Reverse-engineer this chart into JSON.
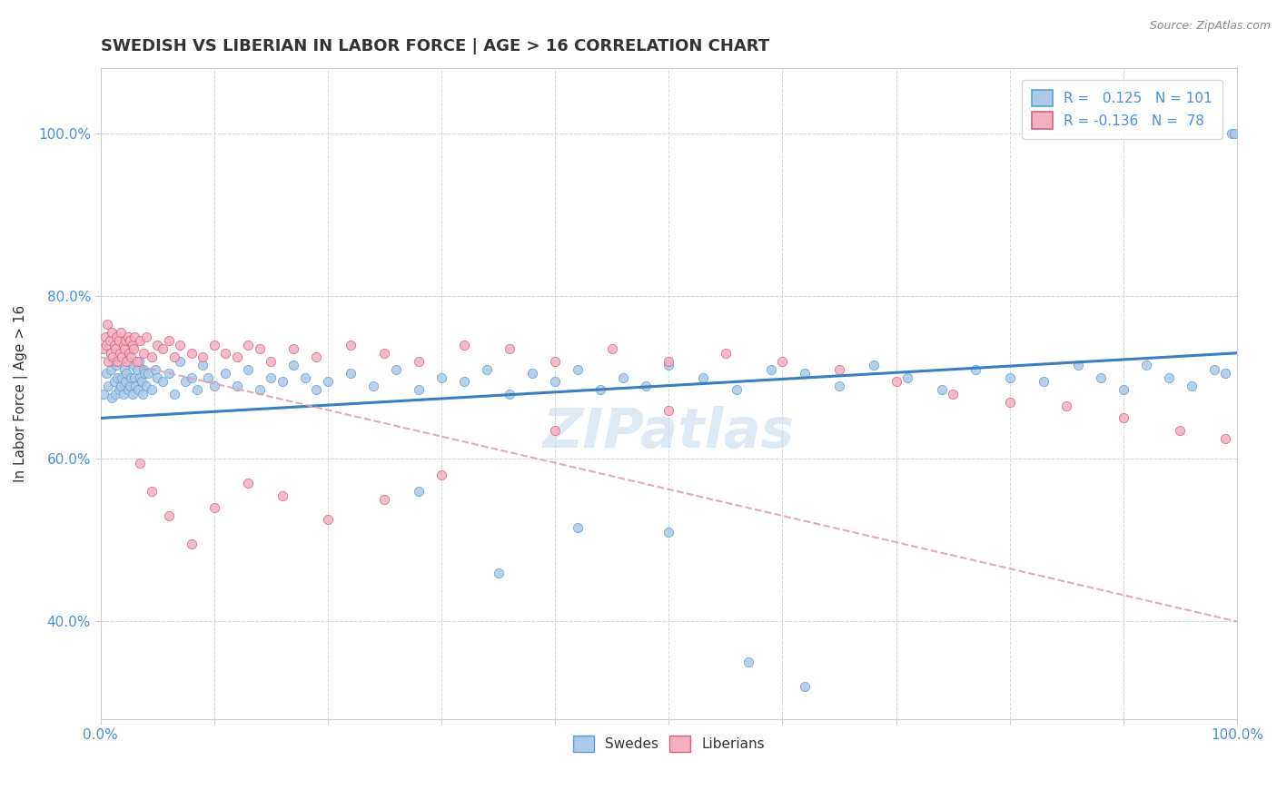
{
  "title": "SWEDISH VS LIBERIAN IN LABOR FORCE | AGE > 16 CORRELATION CHART",
  "source_text": "Source: ZipAtlas.com",
  "ylabel": "In Labor Force | Age > 16",
  "legend_swedes": "Swedes",
  "legend_liberians": "Liberians",
  "r_swedes": 0.125,
  "n_swedes": 101,
  "r_liberians": -0.136,
  "n_liberians": 78,
  "color_swedes_fill": "#adc8e8",
  "color_swedes_edge": "#5a9fd4",
  "color_liberians_fill": "#f4b0c0",
  "color_liberians_edge": "#d46080",
  "color_trend_swedes": "#3a7fc1",
  "color_trend_liberians": "#e0a0b0",
  "watermark": "ZIPatlas",
  "xlim": [
    0,
    100
  ],
  "ylim": [
    28,
    108
  ],
  "yticks": [
    40,
    60,
    80,
    100
  ],
  "trend_swedes_y0": 65.0,
  "trend_swedes_y1": 73.0,
  "trend_liberians_y0": 72.5,
  "trend_liberians_y1": 40.0,
  "swedes_x": [
    0.3,
    0.5,
    0.7,
    0.9,
    1.0,
    1.1,
    1.2,
    1.3,
    1.4,
    1.5,
    1.6,
    1.7,
    1.8,
    1.9,
    2.0,
    2.1,
    2.2,
    2.3,
    2.4,
    2.5,
    2.6,
    2.7,
    2.8,
    2.9,
    3.0,
    3.1,
    3.2,
    3.3,
    3.4,
    3.5,
    3.6,
    3.7,
    3.8,
    3.9,
    4.0,
    4.2,
    4.5,
    4.8,
    5.0,
    5.5,
    6.0,
    6.5,
    7.0,
    7.5,
    8.0,
    8.5,
    9.0,
    9.5,
    10.0,
    11.0,
    12.0,
    13.0,
    14.0,
    15.0,
    16.0,
    17.0,
    18.0,
    19.0,
    20.0,
    22.0,
    24.0,
    26.0,
    28.0,
    30.0,
    32.0,
    34.0,
    36.0,
    38.0,
    40.0,
    42.0,
    44.0,
    46.0,
    48.0,
    50.0,
    53.0,
    56.0,
    59.0,
    62.0,
    65.0,
    68.0,
    71.0,
    74.0,
    77.0,
    80.0,
    83.0,
    86.0,
    88.0,
    90.0,
    92.0,
    94.0,
    96.0,
    98.0,
    99.0,
    99.5,
    50.0,
    35.0,
    28.0,
    42.0,
    57.0,
    62.0,
    99.8
  ],
  "swedes_y": [
    68.0,
    70.5,
    69.0,
    71.0,
    67.5,
    72.0,
    69.5,
    68.0,
    71.5,
    70.0,
    68.5,
    72.5,
    69.0,
    70.0,
    68.0,
    71.0,
    69.5,
    70.5,
    68.5,
    72.0,
    69.0,
    70.0,
    68.0,
    71.5,
    70.0,
    69.0,
    71.0,
    68.5,
    72.0,
    70.0,
    69.5,
    68.0,
    71.0,
    70.5,
    69.0,
    70.5,
    68.5,
    71.0,
    70.0,
    69.5,
    70.5,
    68.0,
    72.0,
    69.5,
    70.0,
    68.5,
    71.5,
    70.0,
    69.0,
    70.5,
    69.0,
    71.0,
    68.5,
    70.0,
    69.5,
    71.5,
    70.0,
    68.5,
    69.5,
    70.5,
    69.0,
    71.0,
    68.5,
    70.0,
    69.5,
    71.0,
    68.0,
    70.5,
    69.5,
    71.0,
    68.5,
    70.0,
    69.0,
    71.5,
    70.0,
    68.5,
    71.0,
    70.5,
    69.0,
    71.5,
    70.0,
    68.5,
    71.0,
    70.0,
    69.5,
    71.5,
    70.0,
    68.5,
    71.5,
    70.0,
    69.0,
    71.0,
    70.5,
    100.0,
    51.0,
    46.0,
    56.0,
    51.5,
    35.0,
    32.0,
    100.0
  ],
  "liberians_x": [
    0.2,
    0.4,
    0.5,
    0.6,
    0.7,
    0.8,
    0.9,
    1.0,
    1.1,
    1.2,
    1.3,
    1.4,
    1.5,
    1.6,
    1.7,
    1.8,
    1.9,
    2.0,
    2.1,
    2.2,
    2.3,
    2.4,
    2.5,
    2.6,
    2.7,
    2.8,
    2.9,
    3.0,
    3.2,
    3.5,
    3.8,
    4.0,
    4.5,
    5.0,
    5.5,
    6.0,
    6.5,
    7.0,
    8.0,
    9.0,
    10.0,
    11.0,
    12.0,
    13.0,
    14.0,
    15.0,
    17.0,
    19.0,
    22.0,
    25.0,
    28.0,
    32.0,
    36.0,
    40.0,
    45.0,
    50.0,
    55.0,
    60.0,
    65.0,
    70.0,
    75.0,
    80.0,
    85.0,
    90.0,
    95.0,
    99.0,
    3.5,
    4.5,
    6.0,
    8.0,
    10.0,
    13.0,
    16.0,
    20.0,
    25.0,
    30.0,
    40.0,
    50.0
  ],
  "liberians_y": [
    73.5,
    75.0,
    74.0,
    76.5,
    72.0,
    74.5,
    73.0,
    75.5,
    72.5,
    74.0,
    73.5,
    75.0,
    72.0,
    74.5,
    73.0,
    75.5,
    72.5,
    74.0,
    73.5,
    74.5,
    72.0,
    75.0,
    73.0,
    74.5,
    72.5,
    74.0,
    73.5,
    75.0,
    72.0,
    74.5,
    73.0,
    75.0,
    72.5,
    74.0,
    73.5,
    74.5,
    72.5,
    74.0,
    73.0,
    72.5,
    74.0,
    73.0,
    72.5,
    74.0,
    73.5,
    72.0,
    73.5,
    72.5,
    74.0,
    73.0,
    72.0,
    74.0,
    73.5,
    72.0,
    73.5,
    72.0,
    73.0,
    72.0,
    71.0,
    69.5,
    68.0,
    67.0,
    66.5,
    65.0,
    63.5,
    62.5,
    59.5,
    56.0,
    53.0,
    49.5,
    54.0,
    57.0,
    55.5,
    52.5,
    55.0,
    58.0,
    63.5,
    66.0
  ]
}
